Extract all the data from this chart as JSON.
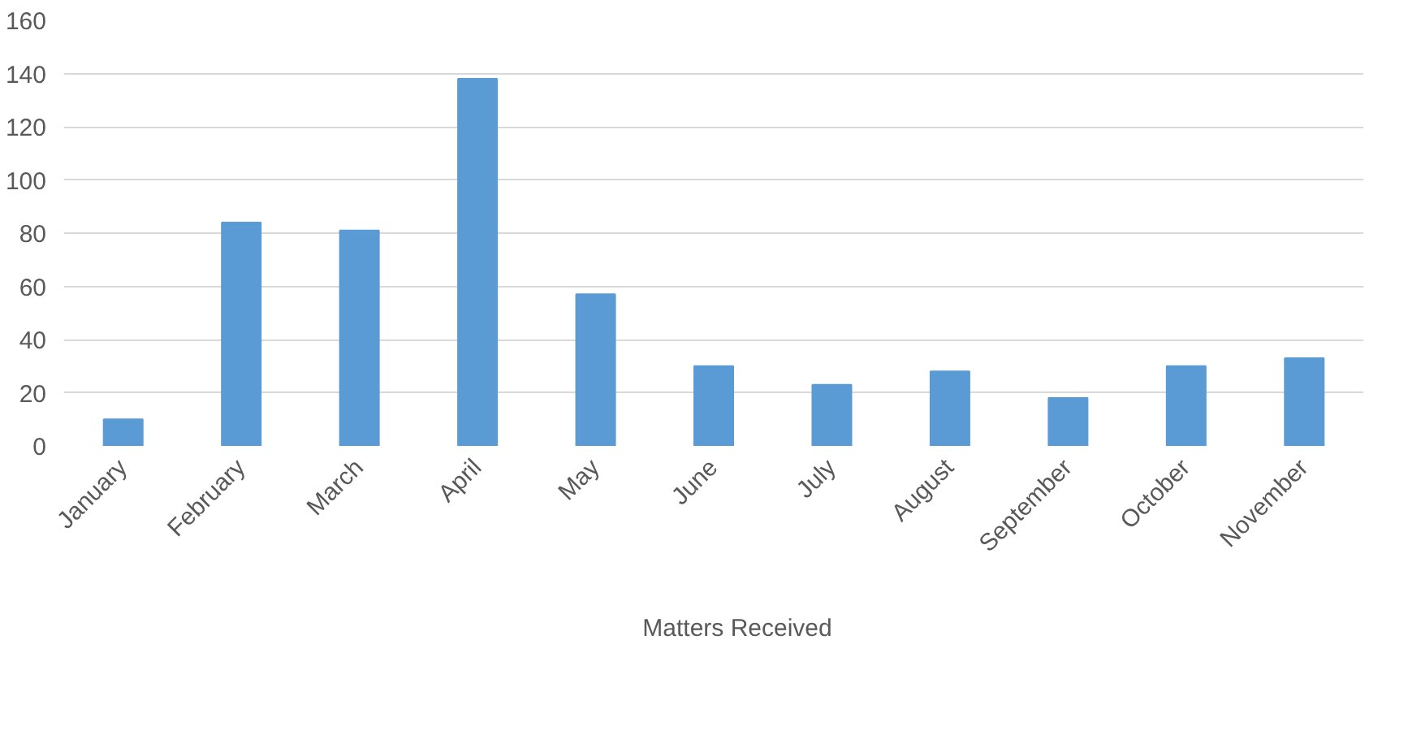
{
  "chart_data": {
    "type": "bar",
    "categories": [
      "January",
      "February",
      "March",
      "April",
      "May",
      "June",
      "July",
      "August",
      "September",
      "October",
      "November"
    ],
    "series": [
      {
        "name": "Matters Received",
        "color": "#5b9bd5",
        "values": [
          10,
          84,
          81,
          138,
          57,
          30,
          23,
          28,
          18,
          30,
          33
        ]
      }
    ],
    "ylim": [
      0,
      160
    ],
    "yticks": [
      0,
      20,
      40,
      60,
      80,
      100,
      120,
      140,
      160
    ],
    "grid": "y",
    "legend": "bottom"
  }
}
